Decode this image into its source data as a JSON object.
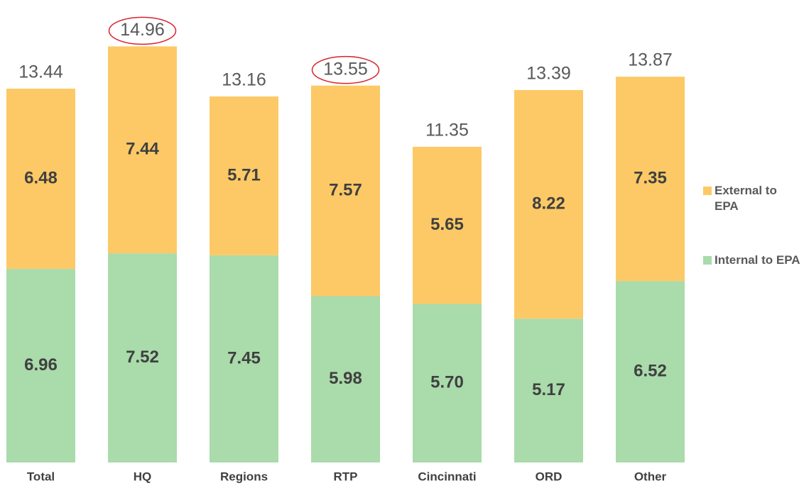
{
  "chart_data": {
    "type": "stacked_bar",
    "categories": [
      "Total",
      "HQ",
      "Regions",
      "RTP",
      "Cincinnati",
      "ORD",
      "Other"
    ],
    "series": [
      {
        "name": "Internal to EPA",
        "color": "#a9dbab",
        "values": [
          6.96,
          7.52,
          7.45,
          5.98,
          5.7,
          5.17,
          6.52
        ],
        "value_labels": [
          "6.96",
          "7.52",
          "7.45",
          "5.98",
          "5.70",
          "5.17",
          "6.52"
        ]
      },
      {
        "name": "External to EPA",
        "color": "#fdc966",
        "values": [
          6.48,
          7.44,
          5.71,
          7.57,
          5.65,
          8.22,
          7.35
        ]
      }
    ],
    "totals": [
      13.44,
      14.96,
      13.16,
      13.55,
      11.35,
      13.39,
      13.87
    ],
    "highlighted": [
      false,
      true,
      false,
      true,
      false,
      false,
      false
    ],
    "highlight_color": "#d9232e",
    "ylim": [
      0,
      16.5
    ],
    "legend": "right"
  }
}
